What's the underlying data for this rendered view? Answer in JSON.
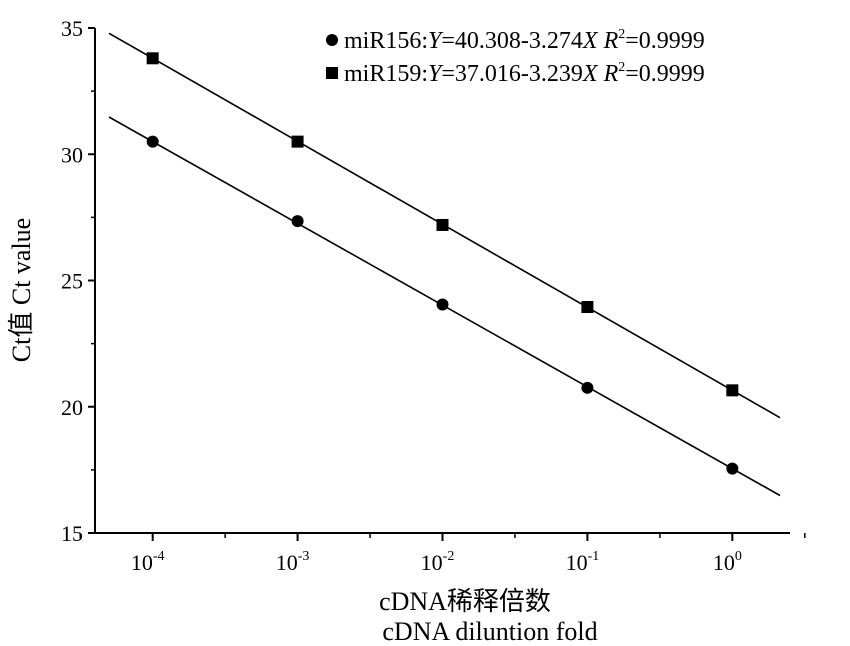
{
  "chart_data": {
    "type": "scatter",
    "xscale": "log10",
    "xlim": [
      4e-05,
      2.5
    ],
    "ylim": [
      15,
      35
    ],
    "yticks": [
      15,
      20,
      25,
      30,
      35
    ],
    "xticks": [
      {
        "base": "10",
        "exp": "-4",
        "value": 0.0001
      },
      {
        "base": "10",
        "exp": "-3",
        "value": 0.001
      },
      {
        "base": "10",
        "exp": "-2",
        "value": 0.01
      },
      {
        "base": "10",
        "exp": "-1",
        "value": 0.1
      },
      {
        "base": "10",
        "exp": "0",
        "value": 1
      }
    ],
    "xlabel": {
      "line1": "cDNA稀释倍数",
      "line2": "cDNA diluntion fold"
    },
    "ylabel": "Ct值 Ct value",
    "legend_position": "top-right",
    "grid": false,
    "series": [
      {
        "name": "miR156",
        "marker": "circle",
        "equation": {
          "y": "Y",
          "rhs": "=40.308-3.274",
          "x": "X",
          "r": "R",
          "r_exp": "2",
          "r_val": "=0.9999"
        },
        "fit": {
          "intercept": 17.55,
          "slope": -3.274,
          "x_range": [
            4e-05,
            2.5
          ]
        },
        "x": [
          0.0001,
          0.001,
          0.01,
          0.1,
          1
        ],
        "y": [
          30.5,
          27.35,
          24.05,
          20.75,
          17.55
        ]
      },
      {
        "name": "miR159",
        "marker": "square",
        "equation": {
          "y": "Y",
          "rhs": "=37.016-3.239",
          "x": "X",
          "r": "R",
          "r_exp": "2",
          "r_val": "=0.9999"
        },
        "fit": {
          "intercept": 20.75,
          "slope": -3.239,
          "x_range": [
            4e-05,
            2.5
          ]
        },
        "x": [
          0.0001,
          0.001,
          0.01,
          0.1,
          1
        ],
        "y": [
          33.8,
          30.5,
          27.2,
          23.95,
          20.65
        ]
      }
    ]
  }
}
